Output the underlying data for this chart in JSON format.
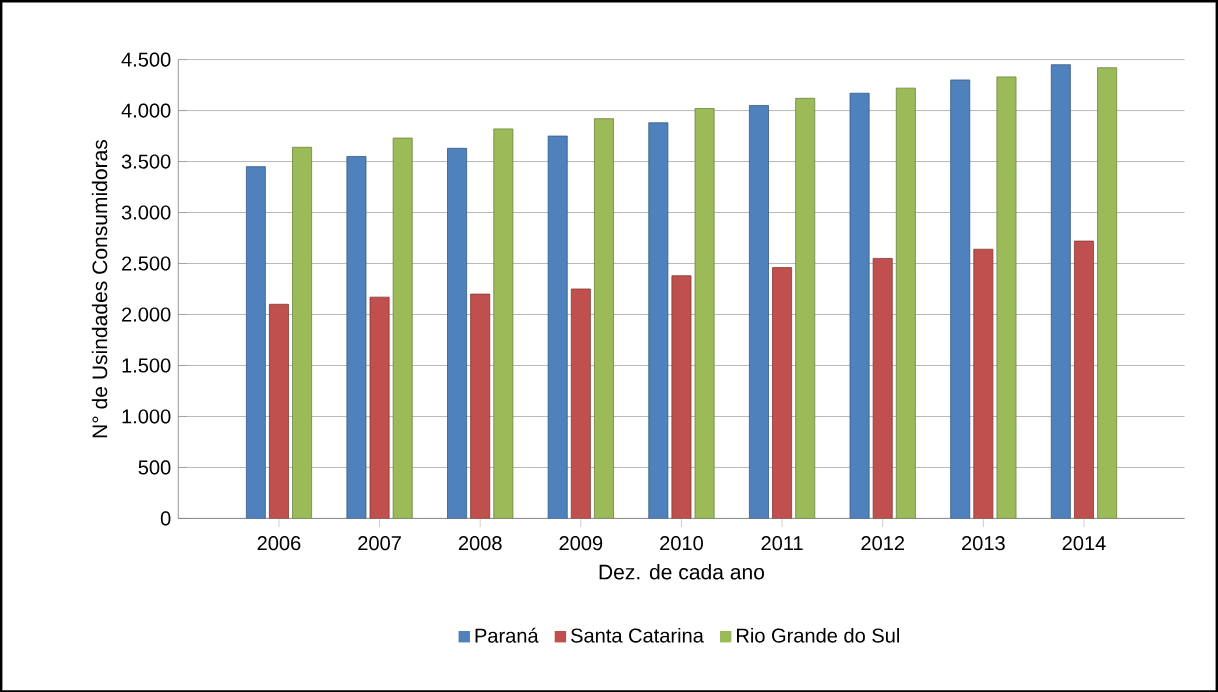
{
  "chart_data": {
    "type": "bar",
    "xlabel": "Dez. de cada ano",
    "ylabel": "N° de Usindades Consumidoras",
    "categories": [
      "2006",
      "2007",
      "2008",
      "2009",
      "2010",
      "2011",
      "2012",
      "2013",
      "2014"
    ],
    "series": [
      {
        "name": "Paraná",
        "color": "#4f81bd",
        "values": [
          3450,
          3550,
          3630,
          3750,
          3880,
          4050,
          4170,
          4300,
          4450
        ]
      },
      {
        "name": "Santa Catarina",
        "color": "#c0504d",
        "values": [
          2100,
          2170,
          2200,
          2250,
          2380,
          2460,
          2550,
          2640,
          2720
        ]
      },
      {
        "name": "Rio Grande do Sul",
        "color": "#9bbb59",
        "values": [
          3640,
          3730,
          3820,
          3920,
          4020,
          4120,
          4220,
          4330,
          4420
        ]
      }
    ],
    "ylim": [
      0,
      4500
    ],
    "yticks": [
      0,
      {
        "value": 500,
        "label": "500"
      },
      {
        "value": 1000,
        "label": "1.000"
      },
      {
        "value": 1500,
        "label": "1.500"
      },
      {
        "value": 2000,
        "label": "2.000"
      },
      {
        "value": 2500,
        "label": "2.500"
      },
      {
        "value": 3000,
        "label": "3.000"
      },
      {
        "value": 3500,
        "label": "3.500"
      },
      {
        "value": 4000,
        "label": "4.000"
      },
      {
        "value": 4500,
        "label": "4.500"
      }
    ],
    "grid": "y",
    "legend": "bottom"
  }
}
